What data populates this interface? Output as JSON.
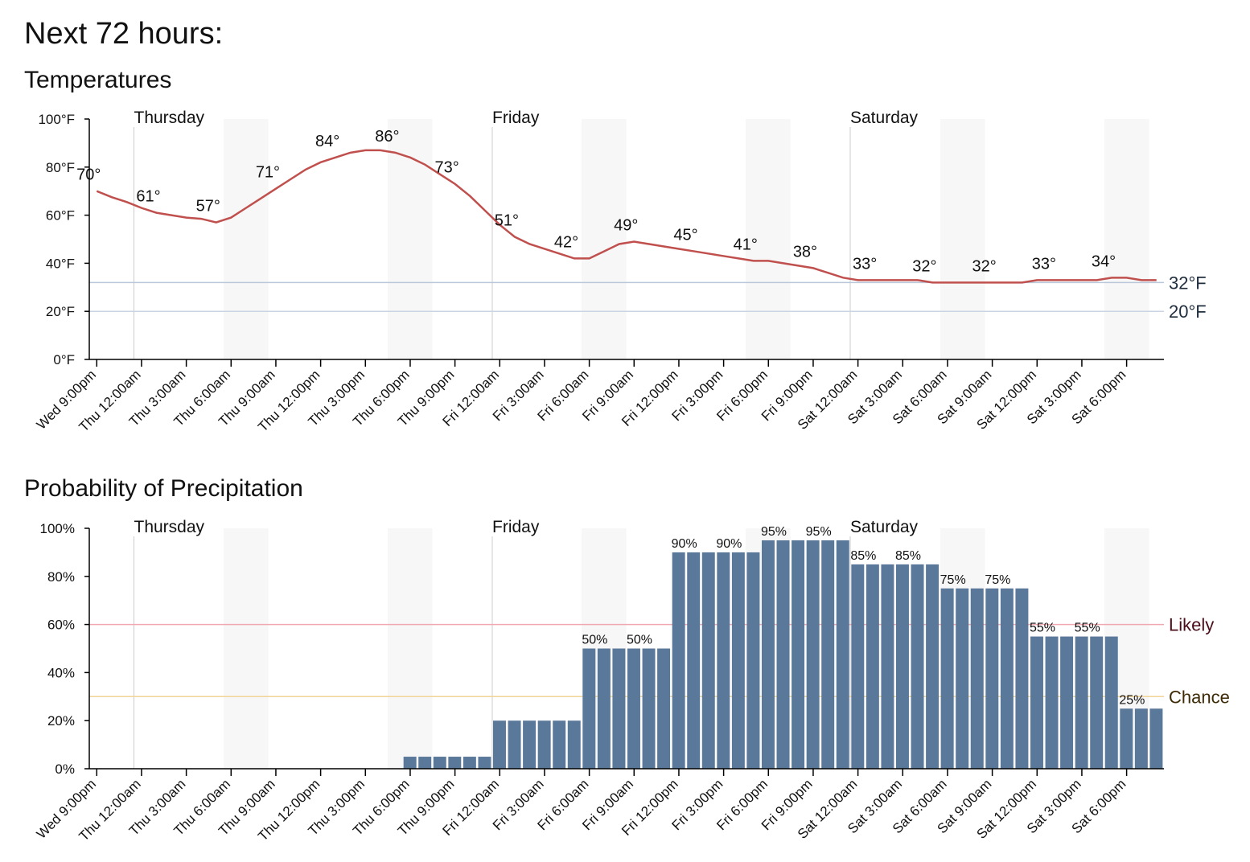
{
  "header": {
    "title": "Next 72 hours:"
  },
  "chart_data": [
    {
      "type": "line",
      "title": "Temperatures",
      "categories": [
        "Wed 9:00pm",
        null,
        null,
        "Thu 12:00am",
        null,
        null,
        "Thu 3:00am",
        null,
        null,
        "Thu 6:00am",
        null,
        null,
        "Thu 9:00am",
        null,
        null,
        "Thu 12:00pm",
        null,
        null,
        "Thu 3:00pm",
        null,
        null,
        "Thu 6:00pm",
        null,
        null,
        "Thu 9:00pm",
        null,
        null,
        "Fri 12:00am",
        null,
        null,
        "Fri 3:00am",
        null,
        null,
        "Fri 6:00am",
        null,
        null,
        "Fri 9:00am",
        null,
        null,
        "Fri 12:00pm",
        null,
        null,
        "Fri 3:00pm",
        null,
        null,
        "Fri 6:00pm",
        null,
        null,
        "Fri 9:00pm",
        null,
        null,
        "Sat 12:00am",
        null,
        null,
        "Sat 3:00am",
        null,
        null,
        "Sat 6:00am",
        null,
        null,
        "Sat 9:00am",
        null,
        null,
        "Sat 12:00pm",
        null,
        null,
        "Sat 3:00pm",
        null,
        null,
        "Sat 6:00pm",
        null,
        null
      ],
      "values": [
        70,
        67.5,
        65.5,
        63,
        61,
        60,
        59,
        58.5,
        57,
        59,
        63,
        67,
        71,
        75,
        79,
        82,
        84,
        86,
        87,
        87,
        86,
        84,
        81,
        77,
        73,
        68,
        62,
        56,
        51,
        48,
        46,
        44,
        42,
        42,
        45,
        48,
        49,
        48,
        47,
        46,
        45,
        44,
        43,
        42,
        41,
        41,
        40,
        39,
        38,
        36,
        34,
        33,
        33,
        33,
        33,
        33,
        32,
        32,
        32,
        32,
        32,
        32,
        32,
        33,
        33,
        33,
        33,
        33,
        34,
        34,
        33,
        33
      ],
      "value_labels": [
        "70°",
        null,
        null,
        null,
        "61°",
        null,
        null,
        null,
        "57°",
        null,
        null,
        null,
        "71°",
        null,
        null,
        null,
        "84°",
        null,
        null,
        null,
        "86°",
        null,
        null,
        null,
        "73°",
        null,
        null,
        null,
        "51°",
        null,
        null,
        null,
        "42°",
        null,
        null,
        null,
        "49°",
        null,
        null,
        null,
        "45°",
        null,
        null,
        null,
        "41°",
        null,
        null,
        null,
        "38°",
        null,
        null,
        null,
        "33°",
        null,
        null,
        null,
        "32°",
        null,
        null,
        null,
        "32°",
        null,
        null,
        null,
        "33°",
        null,
        null,
        null,
        "34°",
        null,
        null,
        null
      ],
      "color": "#c0504d",
      "days": [
        "Thursday",
        "Friday",
        "Saturday"
      ],
      "ylim": [
        0,
        100
      ],
      "yticks": [
        {
          "value": 0,
          "label": "0°F"
        },
        {
          "value": 20,
          "label": "20°F"
        },
        {
          "value": 40,
          "label": "40°F"
        },
        {
          "value": 60,
          "label": "60°F"
        },
        {
          "value": 80,
          "label": "80°F"
        },
        {
          "value": 100,
          "label": "100°F"
        }
      ],
      "reference_lines": [
        {
          "value": 32,
          "label": "32°F",
          "color": "#b8c8da",
          "label_color": "#1f2d3d"
        },
        {
          "value": 20,
          "label": "20°F",
          "color": "#c8d4e2",
          "label_color": "#1f2d3d"
        }
      ]
    },
    {
      "type": "bar",
      "title": "Probability of Precipitation",
      "categories": [
        "Wed 9:00pm",
        null,
        null,
        "Thu 12:00am",
        null,
        null,
        "Thu 3:00am",
        null,
        null,
        "Thu 6:00am",
        null,
        null,
        "Thu 9:00am",
        null,
        null,
        "Thu 12:00pm",
        null,
        null,
        "Thu 3:00pm",
        null,
        null,
        "Thu 6:00pm",
        null,
        null,
        "Thu 9:00pm",
        null,
        null,
        "Fri 12:00am",
        null,
        null,
        "Fri 3:00am",
        null,
        null,
        "Fri 6:00am",
        null,
        null,
        "Fri 9:00am",
        null,
        null,
        "Fri 12:00pm",
        null,
        null,
        "Fri 3:00pm",
        null,
        null,
        "Fri 6:00pm",
        null,
        null,
        "Fri 9:00pm",
        null,
        null,
        "Sat 12:00am",
        null,
        null,
        "Sat 3:00am",
        null,
        null,
        "Sat 6:00am",
        null,
        null,
        "Sat 9:00am",
        null,
        null,
        "Sat 12:00pm",
        null,
        null,
        "Sat 3:00pm",
        null,
        null,
        "Sat 6:00pm",
        null,
        null
      ],
      "values": [
        0,
        0,
        0,
        0,
        0,
        0,
        0,
        0,
        0,
        0,
        0,
        0,
        0,
        0,
        0,
        0,
        0,
        0,
        0,
        0,
        0,
        5,
        5,
        5,
        5,
        5,
        5,
        20,
        20,
        20,
        20,
        20,
        20,
        50,
        50,
        50,
        50,
        50,
        50,
        90,
        90,
        90,
        90,
        90,
        90,
        95,
        95,
        95,
        95,
        95,
        95,
        85,
        85,
        85,
        85,
        85,
        85,
        75,
        75,
        75,
        75,
        75,
        75,
        55,
        55,
        55,
        55,
        55,
        55,
        25,
        25,
        25
      ],
      "value_labels": [
        null,
        null,
        null,
        null,
        null,
        null,
        null,
        null,
        null,
        null,
        null,
        null,
        null,
        null,
        null,
        null,
        null,
        null,
        null,
        null,
        null,
        null,
        null,
        null,
        null,
        null,
        null,
        null,
        null,
        null,
        null,
        null,
        null,
        "50%",
        null,
        null,
        "50%",
        null,
        null,
        "90%",
        null,
        null,
        "90%",
        null,
        null,
        "95%",
        null,
        null,
        "95%",
        null,
        null,
        "85%",
        null,
        null,
        "85%",
        null,
        null,
        "75%",
        null,
        null,
        "75%",
        null,
        null,
        "55%",
        null,
        null,
        "55%",
        null,
        null,
        "25%",
        null,
        null
      ],
      "color": "#5a7899",
      "days": [
        "Thursday",
        "Friday",
        "Saturday"
      ],
      "ylim": [
        0,
        100
      ],
      "yticks": [
        {
          "value": 0,
          "label": "0%"
        },
        {
          "value": 20,
          "label": "20%"
        },
        {
          "value": 40,
          "label": "40%"
        },
        {
          "value": 60,
          "label": "60%"
        },
        {
          "value": 80,
          "label": "80%"
        },
        {
          "value": 100,
          "label": "100%"
        }
      ],
      "reference_lines": [
        {
          "value": 60,
          "label": "Likely",
          "color": "#f0a8b0",
          "label_color": "#4a0d1a"
        },
        {
          "value": 30,
          "label": "Chance",
          "color": "#f2d49a",
          "label_color": "#3d2a05"
        }
      ]
    }
  ]
}
